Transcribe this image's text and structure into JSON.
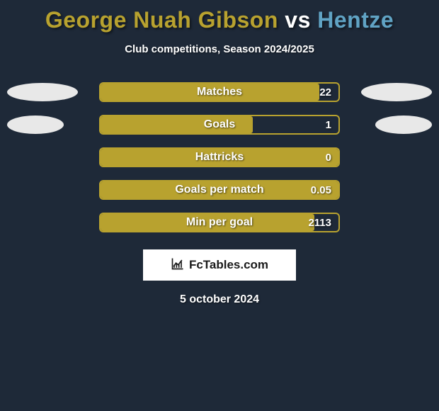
{
  "title": {
    "player1": "George Nuah Gibson",
    "vs": " vs ",
    "player2": "Hentze",
    "color_player1": "#b8a22f",
    "color_vs": "#ffffff",
    "color_player2": "#60a3c4"
  },
  "subtitle": "Club competitions, Season 2024/2025",
  "accent_color": "#b8a22f",
  "border_color": "#b8a22f",
  "background_color": "#1e2938",
  "text_color": "#ffffff",
  "ellipse_color": "#e8e8e8",
  "stats": [
    {
      "label": "Matches",
      "value": "22",
      "fill_pct": 92,
      "show_ellipses": true,
      "left_ellipse_w": 100,
      "right_ellipse_w": 100
    },
    {
      "label": "Goals",
      "value": "1",
      "fill_pct": 64,
      "show_ellipses": true,
      "left_ellipse_w": 80,
      "right_ellipse_w": 80
    },
    {
      "label": "Hattricks",
      "value": "0",
      "fill_pct": 100,
      "show_ellipses": false
    },
    {
      "label": "Goals per match",
      "value": "0.05",
      "fill_pct": 100,
      "show_ellipses": false
    },
    {
      "label": "Min per goal",
      "value": "2113",
      "fill_pct": 90,
      "show_ellipses": false
    }
  ],
  "footer_brand": "FcTables.com",
  "date": "5 october 2024"
}
